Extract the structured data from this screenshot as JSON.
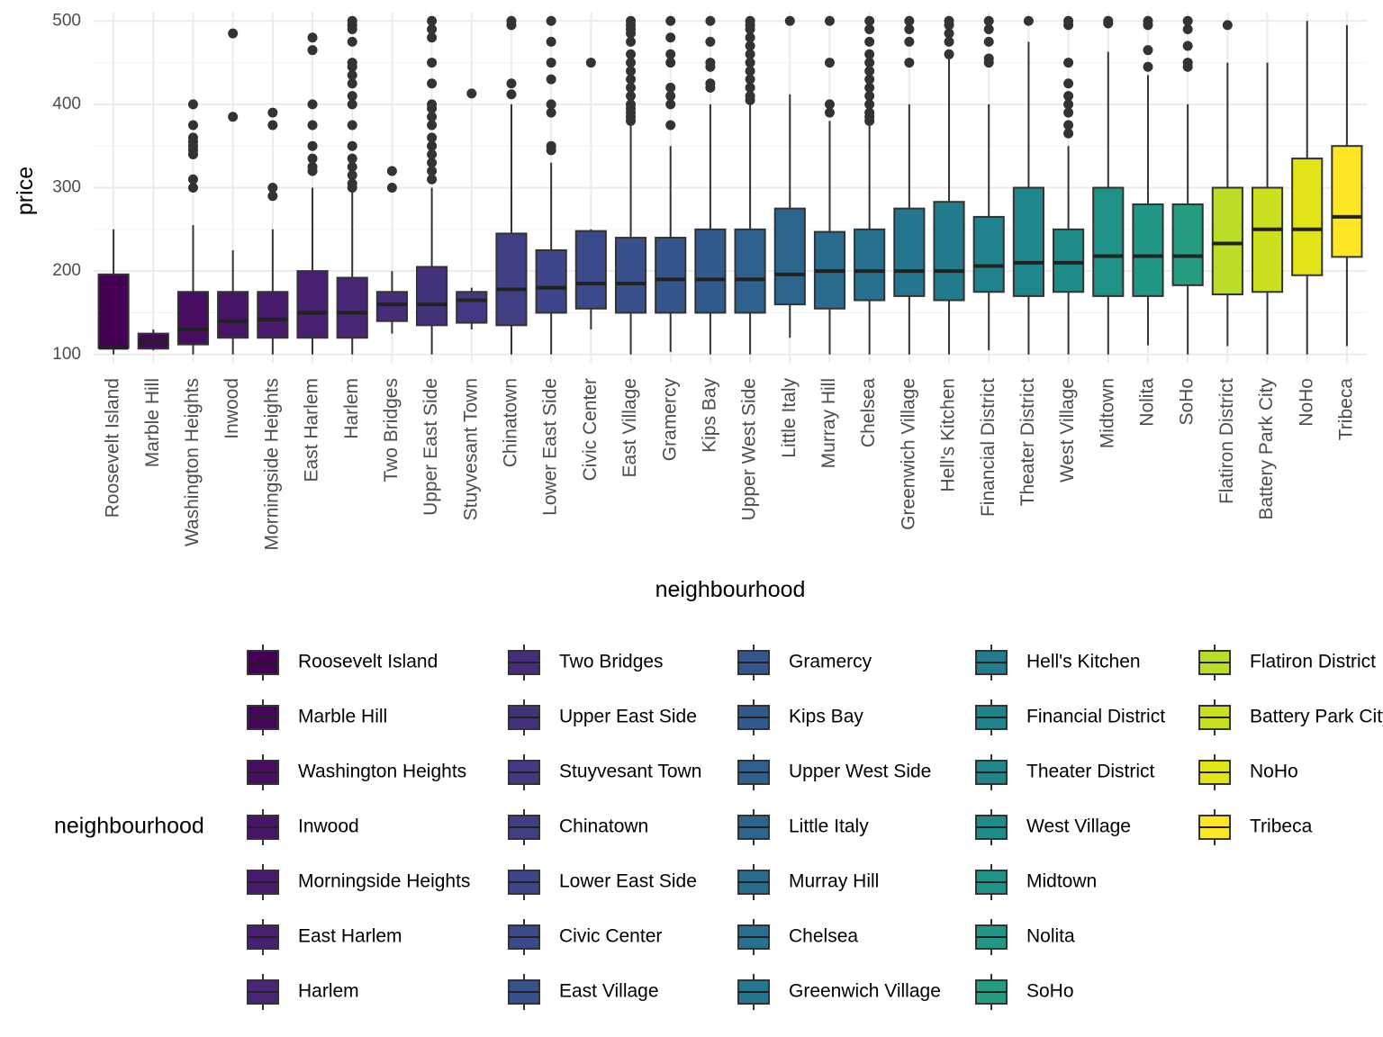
{
  "chart_data": {
    "type": "boxplot",
    "xlabel": "neighbourhood",
    "ylabel": "price",
    "ylim": [
      90,
      510
    ],
    "yticks": [
      100,
      200,
      300,
      400,
      500
    ],
    "grid": true,
    "legend_title": "neighbourhood",
    "legend_placement": "bottom",
    "fill_palette": "viridis",
    "categories": [
      {
        "name": "Roosevelt Island",
        "color": "#440154",
        "min": 100,
        "q1": 108,
        "median": 108,
        "q3": 196,
        "max": 250,
        "outliers": []
      },
      {
        "name": "Marble Hill",
        "color": "#45065a",
        "min": 105,
        "q1": 107,
        "median": 116,
        "q3": 125,
        "max": 130,
        "outliers": []
      },
      {
        "name": "Washington Heights",
        "color": "#470d60",
        "min": 100,
        "q1": 112,
        "median": 130,
        "q3": 175,
        "max": 255,
        "outliers": [
          300,
          310,
          340,
          345,
          350,
          355,
          360,
          375,
          400
        ]
      },
      {
        "name": "Inwood",
        "color": "#481467",
        "min": 100,
        "q1": 120,
        "median": 140,
        "q3": 175,
        "max": 225,
        "outliers": [
          385,
          485
        ]
      },
      {
        "name": "Morningside Heights",
        "color": "#481a6c",
        "min": 100,
        "q1": 120,
        "median": 142,
        "q3": 175,
        "max": 250,
        "outliers": [
          290,
          300,
          375,
          390
        ]
      },
      {
        "name": "East Harlem",
        "color": "#482071",
        "min": 100,
        "q1": 120,
        "median": 150,
        "q3": 200,
        "max": 300,
        "outliers": [
          320,
          325,
          335,
          350,
          375,
          400,
          465,
          480
        ]
      },
      {
        "name": "Harlem",
        "color": "#472676",
        "min": 100,
        "q1": 120,
        "median": 150,
        "q3": 192,
        "max": 295,
        "outliers": [
          300,
          305,
          315,
          325,
          335,
          350,
          375,
          400,
          410,
          425,
          435,
          445,
          450,
          475,
          490,
          495,
          500
        ]
      },
      {
        "name": "Two Bridges",
        "color": "#472c7a",
        "min": 125,
        "q1": 140,
        "median": 160,
        "q3": 175,
        "max": 200,
        "outliers": [
          300,
          320
        ]
      },
      {
        "name": "Upper East Side",
        "color": "#45327d",
        "min": 100,
        "q1": 135,
        "median": 160,
        "q3": 205,
        "max": 300,
        "outliers": [
          310,
          320,
          330,
          340,
          350,
          360,
          375,
          385,
          395,
          400,
          425,
          450,
          480,
          490,
          500
        ]
      },
      {
        "name": "Stuyvesant Town",
        "color": "#433881",
        "min": 130,
        "q1": 138,
        "median": 165,
        "q3": 175,
        "max": 180,
        "outliers": [
          413
        ]
      },
      {
        "name": "Chinatown",
        "color": "#413e84",
        "min": 100,
        "q1": 135,
        "median": 178,
        "q3": 245,
        "max": 400,
        "outliers": [
          412,
          425,
          495,
          500
        ]
      },
      {
        "name": "Lower East Side",
        "color": "#3e4589",
        "min": 100,
        "q1": 150,
        "median": 180,
        "q3": 225,
        "max": 330,
        "outliers": [
          345,
          350,
          390,
          400,
          430,
          450,
          475,
          500
        ]
      },
      {
        "name": "Civic Center",
        "color": "#3b4a8b",
        "min": 130,
        "q1": 155,
        "median": 185,
        "q3": 248,
        "max": 250,
        "outliers": [
          450
        ]
      },
      {
        "name": "East Village",
        "color": "#38508c",
        "min": 100,
        "q1": 150,
        "median": 185,
        "q3": 240,
        "max": 375,
        "outliers": [
          380,
          385,
          390,
          395,
          400,
          410,
          420,
          430,
          440,
          450,
          460,
          475,
          485,
          490,
          495,
          500
        ]
      },
      {
        "name": "Gramercy",
        "color": "#35568d",
        "min": 103,
        "q1": 150,
        "median": 190,
        "q3": 240,
        "max": 350,
        "outliers": [
          375,
          400,
          410,
          420,
          450,
          460,
          480,
          500
        ]
      },
      {
        "name": "Kips Bay",
        "color": "#325b8d",
        "min": 100,
        "q1": 150,
        "median": 190,
        "q3": 250,
        "max": 400,
        "outliers": [
          420,
          425,
          445,
          450,
          475,
          500
        ]
      },
      {
        "name": "Upper West Side",
        "color": "#2f618e",
        "min": 100,
        "q1": 150,
        "median": 190,
        "q3": 250,
        "max": 400,
        "outliers": [
          405,
          410,
          420,
          430,
          440,
          450,
          460,
          470,
          480,
          490,
          495,
          500
        ]
      },
      {
        "name": "Little Italy",
        "color": "#2c668e",
        "min": 120,
        "q1": 160,
        "median": 196,
        "q3": 275,
        "max": 412,
        "outliers": [
          500
        ]
      },
      {
        "name": "Murray Hill",
        "color": "#2a6c8e",
        "min": 100,
        "q1": 155,
        "median": 200,
        "q3": 247,
        "max": 380,
        "outliers": [
          390,
          400,
          450,
          500
        ]
      },
      {
        "name": "Chelsea",
        "color": "#27718e",
        "min": 100,
        "q1": 165,
        "median": 200,
        "q3": 250,
        "max": 375,
        "outliers": [
          380,
          385,
          390,
          400,
          410,
          420,
          430,
          440,
          450,
          460,
          475,
          490,
          500
        ]
      },
      {
        "name": "Greenwich Village",
        "color": "#25768e",
        "min": 100,
        "q1": 170,
        "median": 200,
        "q3": 275,
        "max": 400,
        "outliers": [
          450,
          475,
          490,
          500
        ]
      },
      {
        "name": "Hell's Kitchen",
        "color": "#227c8e",
        "min": 100,
        "q1": 165,
        "median": 200,
        "q3": 283,
        "max": 455,
        "outliers": [
          460,
          475,
          485,
          495,
          500
        ]
      },
      {
        "name": "Financial District",
        "color": "#20828d",
        "min": 105,
        "q1": 175,
        "median": 206,
        "q3": 265,
        "max": 400,
        "outliers": [
          450,
          455,
          475,
          490,
          500
        ]
      },
      {
        "name": "Theater District",
        "color": "#1f878c",
        "min": 100,
        "q1": 170,
        "median": 210,
        "q3": 300,
        "max": 475,
        "outliers": [
          500
        ]
      },
      {
        "name": "West Village",
        "color": "#1e8d8a",
        "min": 100,
        "q1": 175,
        "median": 210,
        "q3": 250,
        "max": 350,
        "outliers": [
          365,
          375,
          390,
          400,
          410,
          425,
          450,
          495,
          500
        ]
      },
      {
        "name": "Midtown",
        "color": "#1f9288",
        "min": 100,
        "q1": 170,
        "median": 218,
        "q3": 300,
        "max": 463,
        "outliers": [
          497,
          500
        ]
      },
      {
        "name": "Nolita",
        "color": "#219785",
        "min": 111,
        "q1": 170,
        "median": 218,
        "q3": 280,
        "max": 435,
        "outliers": [
          445,
          465,
          495,
          500
        ]
      },
      {
        "name": "SoHo",
        "color": "#269d82",
        "min": 100,
        "q1": 183,
        "median": 218,
        "q3": 280,
        "max": 400,
        "outliers": [
          445,
          450,
          470,
          490,
          500
        ]
      },
      {
        "name": "Flatiron District",
        "color": "#bade28",
        "min": 110,
        "q1": 172,
        "median": 233,
        "q3": 300,
        "max": 450,
        "outliers": [
          495
        ]
      },
      {
        "name": "Battery Park City",
        "color": "#cae11f",
        "min": 100,
        "q1": 175,
        "median": 250,
        "q3": 300,
        "max": 450,
        "outliers": []
      },
      {
        "name": "NoHo",
        "color": "#e2e418",
        "min": 100,
        "q1": 195,
        "median": 250,
        "q3": 335,
        "max": 500,
        "outliers": []
      },
      {
        "name": "Tribeca",
        "color": "#fde725",
        "min": 110,
        "q1": 217,
        "median": 265,
        "q3": 350,
        "max": 495,
        "outliers": []
      }
    ]
  }
}
